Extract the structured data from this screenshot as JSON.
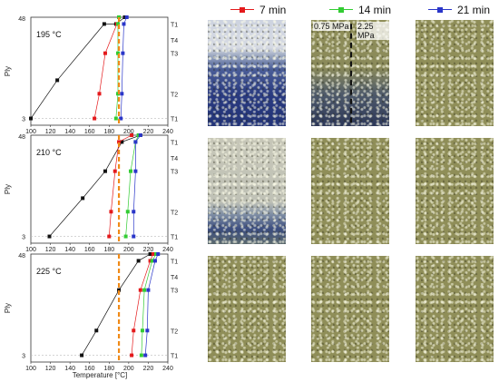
{
  "legend": [
    {
      "label": "7 min",
      "color": "#e41a1c"
    },
    {
      "label": "14 min",
      "color": "#33cc33"
    },
    {
      "label": "21 min",
      "color": "#2a36c9"
    }
  ],
  "axes": {
    "ylabel": "Ply",
    "xlabel": "Temperature [°C]",
    "x_ticks": [
      "100",
      "120",
      "140",
      "160",
      "180",
      "200",
      "220",
      "240"
    ],
    "y_top": "48",
    "y_bottom": "3"
  },
  "ply_labels": [
    "T1",
    "T4",
    "T3",
    "T2",
    "T1"
  ],
  "photo_annotations": {
    "left_pressure": "0.75 MPa",
    "right_pressure": "2.25 MPa"
  },
  "chart_data": [
    {
      "type": "line",
      "title": "195 °C",
      "xlim": [
        100,
        240
      ],
      "ylim": [
        0,
        48
      ],
      "vline": 190,
      "series": [
        {
          "color": "#111111",
          "points": [
            [
              100,
              3
            ],
            [
              127,
              20
            ],
            [
              175,
              45
            ],
            [
              187,
              45
            ],
            [
              196,
              48
            ]
          ]
        },
        {
          "color": "#e41a1c",
          "points": [
            [
              165,
              3
            ],
            [
              170,
              14
            ],
            [
              176,
              32
            ],
            [
              188,
              45
            ],
            [
              189,
              45
            ],
            [
              190,
              48
            ]
          ]
        },
        {
          "color": "#33cc33",
          "points": [
            [
              187,
              3
            ],
            [
              189,
              14
            ],
            [
              189,
              32
            ],
            [
              189,
              45
            ],
            [
              190,
              48
            ]
          ]
        },
        {
          "color": "#2a36c9",
          "points": [
            [
              192,
              3
            ],
            [
              193,
              14
            ],
            [
              194,
              32
            ],
            [
              195,
              45
            ],
            [
              198,
              48
            ]
          ]
        }
      ]
    },
    {
      "type": "line",
      "title": "210 °C",
      "xlim": [
        100,
        240
      ],
      "ylim": [
        0,
        48
      ],
      "vline": 190,
      "series": [
        {
          "color": "#111111",
          "points": [
            [
              119,
              3
            ],
            [
              153,
              20
            ],
            [
              176,
              32
            ],
            [
              193,
              45
            ],
            [
              212,
              48
            ]
          ]
        },
        {
          "color": "#e41a1c",
          "points": [
            [
              180,
              3
            ],
            [
              182,
              14
            ],
            [
              186,
              32
            ],
            [
              190,
              45
            ],
            [
              203,
              48
            ]
          ]
        },
        {
          "color": "#33cc33",
          "points": [
            [
              197,
              3
            ],
            [
              199,
              14
            ],
            [
              202,
              32
            ],
            [
              207,
              45
            ],
            [
              210,
              48
            ]
          ]
        },
        {
          "color": "#2a36c9",
          "points": [
            [
              205,
              3
            ],
            [
              205,
              14
            ],
            [
              207,
              32
            ],
            [
              207,
              45
            ],
            [
              212,
              48
            ]
          ]
        }
      ]
    },
    {
      "type": "line",
      "title": "225 °C",
      "xlim": [
        100,
        240
      ],
      "ylim": [
        0,
        48
      ],
      "vline": 190,
      "series": [
        {
          "color": "#111111",
          "points": [
            [
              152,
              3
            ],
            [
              167,
              14
            ],
            [
              190,
              32
            ],
            [
              210,
              45
            ],
            [
              222,
              48
            ]
          ]
        },
        {
          "color": "#e41a1c",
          "points": [
            [
              203,
              3
            ],
            [
              205,
              14
            ],
            [
              212,
              32
            ],
            [
              222,
              45
            ],
            [
              225,
              48
            ]
          ]
        },
        {
          "color": "#33cc33",
          "points": [
            [
              213,
              3
            ],
            [
              214,
              14
            ],
            [
              216,
              32
            ],
            [
              224,
              45
            ],
            [
              228,
              48
            ]
          ]
        },
        {
          "color": "#2a36c9",
          "points": [
            [
              217,
              3
            ],
            [
              219,
              14
            ],
            [
              220,
              32
            ],
            [
              227,
              45
            ],
            [
              230,
              48
            ]
          ]
        }
      ]
    }
  ]
}
